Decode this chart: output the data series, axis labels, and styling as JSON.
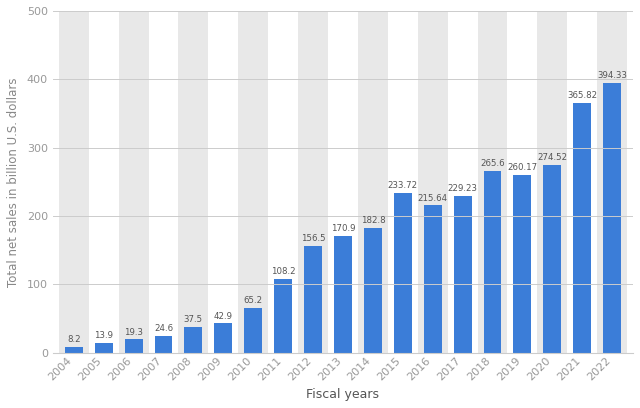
{
  "years": [
    "2004",
    "2005",
    "2006",
    "2007",
    "2008",
    "2009",
    "2010",
    "2011",
    "2012",
    "2013",
    "2014",
    "2015",
    "2016",
    "2017",
    "2018",
    "2019",
    "2020",
    "2021",
    "2022"
  ],
  "values": [
    8.2,
    13.9,
    19.3,
    24.6,
    37.5,
    42.9,
    65.2,
    108.2,
    156.5,
    170.9,
    182.8,
    233.72,
    215.64,
    229.23,
    265.6,
    260.17,
    274.52,
    365.82,
    394.33
  ],
  "bar_color": "#3b7dd8",
  "outer_background": "#ffffff",
  "plot_background": "#ffffff",
  "band_color": "#e8e8e8",
  "xlabel": "Fiscal years",
  "ylabel": "Total net sales in billion U.S. dollars",
  "ylim": [
    0,
    500
  ],
  "yticks": [
    0,
    100,
    200,
    300,
    400,
    500
  ],
  "grid_color": "#cccccc",
  "tick_label_fontsize": 8,
  "axis_label_fontsize": 9,
  "value_fontsize": 6.2,
  "tick_label_color": "#999999"
}
